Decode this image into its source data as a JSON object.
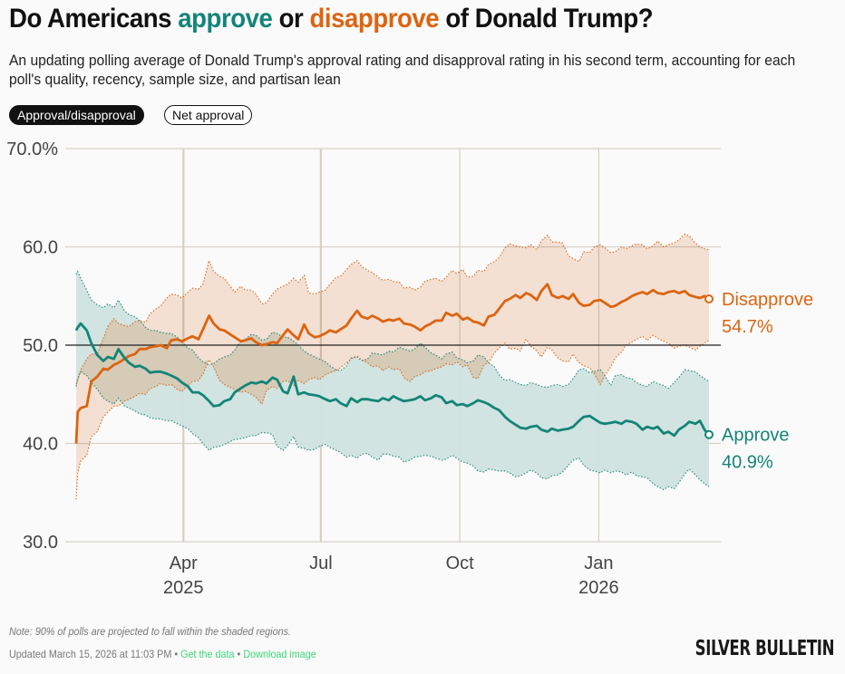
{
  "header": {
    "title_parts": [
      "Do Americans ",
      "approve",
      " or ",
      "disapprove",
      " of Donald Trump?"
    ],
    "subtitle": "An updating polling average of Donald Trump's approval rating and disapproval rating in his second term, accounting for each poll's quality, recency, sample size, and partisan lean"
  },
  "toggles": {
    "active": "Approval/disapproval",
    "inactive": "Net approval"
  },
  "colors": {
    "approve": "#148478",
    "disapprove": "#dc6410",
    "approve_band": "#cfe3df",
    "disapprove_band": "#f5dac8",
    "overlap_band": "#d6cbb6"
  },
  "chart_data": {
    "type": "line",
    "title": "Do Americans approve or disapprove of Donald Trump?",
    "xlabel": "",
    "ylabel": "",
    "x_unit": "days since Jan 20, 2025",
    "x_range": [
      0,
      419
    ],
    "ylim": [
      30,
      70
    ],
    "yticks": [
      30,
      40,
      50,
      60,
      70
    ],
    "ytick_labels": [
      "30.0",
      "40.0",
      "50.0",
      "60.0",
      "70.0%"
    ],
    "reference_line": 50,
    "xticks": [
      {
        "day": 71,
        "label": "Apr",
        "year": "2025",
        "emphasis": true
      },
      {
        "day": 162,
        "label": "Jul",
        "year": "",
        "emphasis": true
      },
      {
        "day": 254,
        "label": "Oct",
        "year": "",
        "emphasis": false
      },
      {
        "day": 346,
        "label": "Jan",
        "year": "2026",
        "emphasis": false
      }
    ],
    "x": [
      0,
      1,
      3,
      7,
      10,
      14,
      18,
      21,
      25,
      28,
      32,
      35,
      39,
      42,
      46,
      49,
      53,
      56,
      60,
      63,
      67,
      70,
      74,
      77,
      81,
      84,
      88,
      91,
      95,
      98,
      102,
      105,
      109,
      112,
      116,
      119,
      123,
      126,
      130,
      133,
      137,
      140,
      144,
      147,
      151,
      154,
      158,
      161,
      165,
      168,
      172,
      175,
      179,
      182,
      186,
      189,
      193,
      196,
      200,
      203,
      207,
      210,
      214,
      217,
      221,
      224,
      228,
      231,
      235,
      238,
      242,
      245,
      249,
      252,
      256,
      259,
      263,
      266,
      270,
      273,
      277,
      280,
      284,
      287,
      291,
      294,
      298,
      301,
      305,
      308,
      312,
      315,
      319,
      322,
      326,
      329,
      333,
      336,
      340,
      343,
      347,
      350,
      354,
      357,
      361,
      364,
      368,
      371,
      375,
      378,
      382,
      385,
      389,
      392,
      396,
      399,
      403,
      406,
      410,
      413,
      416,
      419
    ],
    "series": [
      {
        "name": "Disapprove",
        "final_label": "54.7%",
        "values": [
          40.0,
          43.2,
          43.6,
          43.8,
          46.3,
          46.8,
          47.6,
          47.5,
          48.0,
          48.2,
          48.6,
          48.9,
          49.1,
          49.6,
          49.6,
          49.8,
          49.9,
          50.0,
          49.7,
          50.5,
          50.6,
          50.4,
          50.7,
          50.9,
          50.6,
          51.6,
          53.0,
          52.2,
          51.6,
          51.5,
          51.1,
          50.8,
          50.4,
          50.5,
          50.7,
          50.3,
          50.0,
          50.1,
          50.3,
          50.2,
          51.0,
          51.6,
          51.0,
          50.6,
          52.1,
          51.2,
          50.8,
          50.9,
          51.2,
          51.5,
          51.3,
          51.6,
          52.0,
          52.7,
          53.5,
          52.9,
          52.7,
          53.0,
          52.7,
          52.4,
          52.6,
          52.5,
          52.7,
          52.2,
          52.1,
          51.9,
          51.5,
          51.9,
          52.2,
          52.5,
          52.5,
          53.3,
          53.0,
          53.2,
          52.6,
          52.8,
          52.4,
          52.3,
          52.0,
          52.9,
          53.1,
          53.7,
          54.5,
          54.7,
          55.1,
          54.8,
          55.3,
          55.1,
          54.6,
          55.5,
          56.2,
          55.1,
          54.8,
          55.0,
          54.7,
          55.2,
          54.3,
          54.0,
          54.1,
          54.5,
          54.6,
          54.3,
          53.9,
          54.0,
          54.4,
          54.6,
          55.0,
          55.2,
          55.4,
          55.2,
          55.6,
          55.3,
          55.2,
          55.4,
          55.5,
          55.3,
          55.5,
          55.1,
          54.9,
          54.8,
          55.0,
          54.7
        ]
      },
      {
        "name": "Approve",
        "final_label": "40.9%",
        "values": [
          51.5,
          51.8,
          52.2,
          51.5,
          50.2,
          49.0,
          48.4,
          48.8,
          48.6,
          49.6,
          48.7,
          48.2,
          47.8,
          47.9,
          47.6,
          47.2,
          47.3,
          47.3,
          47.1,
          46.9,
          46.6,
          46.2,
          45.8,
          45.2,
          45.2,
          44.9,
          44.3,
          43.8,
          43.9,
          44.3,
          44.5,
          45.2,
          45.6,
          45.9,
          46.2,
          46.1,
          46.3,
          46.1,
          46.7,
          46.5,
          45.3,
          45.1,
          46.8,
          45.0,
          45.2,
          45.0,
          44.9,
          44.8,
          44.5,
          44.3,
          44.5,
          44.1,
          43.8,
          44.6,
          44.2,
          44.5,
          44.5,
          44.4,
          44.3,
          44.6,
          44.4,
          44.8,
          44.5,
          44.3,
          44.4,
          44.5,
          44.8,
          44.4,
          44.6,
          44.9,
          44.7,
          44.1,
          44.3,
          43.9,
          44.0,
          43.8,
          44.1,
          44.4,
          44.2,
          44.0,
          43.6,
          43.4,
          42.7,
          42.3,
          41.9,
          41.6,
          41.5,
          41.7,
          41.8,
          41.4,
          41.2,
          41.5,
          41.3,
          41.4,
          41.5,
          41.7,
          42.3,
          42.7,
          42.8,
          42.5,
          42.1,
          42.0,
          42.1,
          42.2,
          42.0,
          42.3,
          42.2,
          42.0,
          41.4,
          41.7,
          41.5,
          41.7,
          41.0,
          41.2,
          40.8,
          41.4,
          41.8,
          42.2,
          42.0,
          42.3,
          41.4,
          40.9
        ]
      }
    ],
    "bands": [
      {
        "name": "Disapprove 90% range",
        "upper": [
          46.0,
          46.4,
          47.5,
          48.6,
          49.1,
          49.1,
          50.7,
          51.9,
          52.7,
          52.2,
          52.0,
          51.9,
          52.4,
          52.5,
          52.3,
          53.2,
          53.7,
          54.0,
          54.8,
          55.2,
          55.1,
          54.8,
          55.4,
          55.8,
          55.7,
          56.2,
          58.6,
          57.5,
          57.0,
          56.8,
          56.0,
          55.4,
          56.0,
          55.6,
          55.6,
          55.2,
          54.2,
          54.3,
          55.2,
          55.7,
          56.0,
          56.2,
          56.8,
          56.4,
          57.1,
          55.3,
          55.2,
          55.4,
          55.6,
          56.2,
          56.9,
          57.0,
          57.7,
          58.2,
          58.6,
          58.0,
          57.6,
          57.4,
          56.9,
          56.6,
          56.7,
          56.5,
          56.4,
          55.8,
          55.9,
          55.6,
          55.9,
          56.5,
          56.7,
          56.8,
          56.5,
          56.9,
          57.6,
          57.3,
          57.7,
          56.9,
          57.0,
          57.6,
          57.5,
          58.2,
          58.5,
          58.9,
          59.9,
          60.3,
          60.1,
          60.0,
          59.9,
          60.2,
          59.7,
          60.6,
          61.2,
          60.5,
          60.5,
          60.4,
          59.1,
          58.8,
          58.5,
          59.5,
          59.4,
          60.0,
          60.2,
          59.9,
          59.4,
          59.5,
          60.0,
          59.8,
          60.1,
          60.3,
          60.2,
          59.8,
          60.1,
          60.6,
          60.0,
          60.2,
          60.4,
          60.7,
          61.3,
          61.1,
          60.4,
          60.0,
          59.8,
          59.7
        ]
      },
      {
        "name": "Disapprove lower",
        "lower": [
          34.3,
          37.0,
          38.2,
          38.8,
          40.7,
          41.2,
          42.7,
          43.2,
          43.8,
          43.8,
          44.3,
          44.5,
          44.8,
          45.1,
          45.0,
          45.6,
          45.8,
          46.1,
          45.9,
          46.0,
          45.5,
          45.3,
          45.9,
          46.3,
          46.4,
          47.1,
          48.5,
          47.8,
          46.4,
          46.0,
          45.7,
          45.5,
          45.2,
          45.3,
          45.0,
          44.7,
          44.0,
          45.4,
          45.8,
          45.6,
          46.3,
          46.4,
          45.9,
          46.4,
          46.1,
          46.5,
          46.7,
          46.5,
          47.0,
          47.2,
          47.4,
          47.7,
          48.2,
          48.6,
          48.9,
          48.5,
          48.2,
          47.8,
          47.9,
          47.4,
          47.8,
          47.5,
          47.6,
          46.7,
          46.3,
          46.8,
          47.0,
          47.3,
          47.4,
          47.6,
          47.8,
          48.1,
          48.0,
          48.3,
          47.8,
          48.0,
          46.7,
          46.6,
          48.0,
          48.2,
          49.2,
          49.7,
          50.2,
          49.6,
          49.7,
          49.4,
          50.6,
          49.9,
          49.4,
          48.8,
          49.8,
          49.5,
          48.7,
          48.4,
          48.3,
          49.1,
          48.2,
          47.9,
          47.7,
          47.1,
          46.0,
          46.9,
          47.8,
          48.7,
          49.3,
          50.0,
          50.3,
          50.6,
          50.9,
          50.5,
          51.0,
          50.7,
          50.4,
          50.2,
          49.7,
          49.9,
          50.0,
          49.8,
          49.5,
          49.9,
          50.2,
          50.5
        ]
      },
      {
        "name": "Approve 90% range",
        "upper": [
          57.2,
          57.5,
          56.8,
          55.6,
          54.6,
          54.1,
          53.8,
          54.2,
          53.8,
          54.6,
          53.5,
          53.1,
          52.9,
          52.5,
          51.8,
          51.5,
          51.5,
          51.3,
          51.2,
          51.2,
          50.8,
          50.3,
          49.7,
          49.5,
          48.7,
          48.3,
          48.0,
          48.1,
          48.6,
          48.8,
          49.0,
          49.5,
          50.4,
          50.6,
          51.1,
          51.0,
          50.5,
          50.6,
          51.3,
          51.2,
          50.8,
          50.8,
          50.4,
          50.0,
          49.4,
          49.1,
          48.8,
          48.6,
          48.3,
          47.9,
          47.5,
          47.4,
          47.9,
          48.7,
          48.8,
          48.4,
          48.6,
          49.2,
          49.1,
          49.0,
          49.4,
          49.3,
          49.8,
          49.6,
          49.4,
          49.6,
          50.2,
          49.8,
          49.2,
          49.0,
          48.6,
          49.1,
          49.3,
          48.7,
          48.5,
          48.2,
          48.4,
          49.0,
          48.8,
          48.2,
          47.8,
          47.0,
          46.4,
          46.5,
          46.2,
          46.0,
          45.9,
          46.2,
          46.0,
          45.8,
          45.7,
          45.9,
          46.0,
          45.8,
          46.0,
          46.6,
          47.5,
          47.6,
          47.2,
          47.3,
          47.5,
          46.9,
          45.9,
          46.9,
          47.0,
          46.7,
          46.6,
          46.2,
          45.9,
          45.8,
          46.3,
          46.1,
          45.9,
          45.6,
          46.2,
          46.7,
          47.5,
          47.4,
          47.3,
          46.9,
          46.6,
          46.3
        ]
      },
      {
        "name": "Approve lower",
        "lower": [
          45.8,
          46.6,
          47.3,
          46.9,
          46.2,
          45.5,
          44.6,
          44.3,
          44.0,
          44.6,
          43.8,
          43.6,
          43.3,
          43.0,
          42.9,
          42.6,
          42.5,
          42.5,
          42.3,
          42.3,
          42.0,
          41.8,
          41.5,
          41.0,
          40.6,
          40.0,
          39.3,
          39.6,
          39.7,
          39.9,
          40.2,
          40.4,
          40.5,
          40.6,
          40.8,
          40.8,
          41.1,
          41.1,
          40.9,
          39.7,
          39.3,
          39.8,
          40.7,
          39.6,
          39.5,
          39.3,
          39.4,
          39.7,
          39.9,
          39.6,
          39.3,
          39.1,
          38.6,
          38.8,
          38.5,
          38.9,
          39.0,
          38.6,
          38.3,
          38.9,
          38.9,
          38.7,
          38.6,
          38.1,
          38.3,
          38.6,
          38.7,
          38.8,
          38.7,
          38.5,
          38.3,
          38.4,
          38.8,
          38.5,
          38.1,
          38.0,
          37.7,
          37.2,
          37.1,
          37.4,
          37.3,
          37.2,
          37.2,
          37.0,
          36.6,
          36.7,
          37.0,
          37.3,
          37.0,
          36.5,
          36.4,
          36.7,
          36.8,
          37.1,
          37.8,
          38.3,
          38.5,
          37.8,
          37.3,
          37.2,
          37.0,
          37.3,
          37.0,
          37.2,
          37.1,
          36.8,
          37.1,
          36.7,
          36.6,
          36.5,
          35.9,
          35.6,
          35.3,
          35.6,
          35.4,
          36.0,
          36.9,
          37.4,
          36.8,
          36.3,
          35.9,
          35.6
        ]
      }
    ]
  },
  "note": "Note: 90% of polls are projected to fall within the shaded regions.",
  "footer": {
    "updated": "Updated March 15, 2026 at 11:03 PM",
    "separator": " • ",
    "get_data": "Get the data",
    "download": "Download image"
  },
  "logo": "SILVER BULLETIN"
}
